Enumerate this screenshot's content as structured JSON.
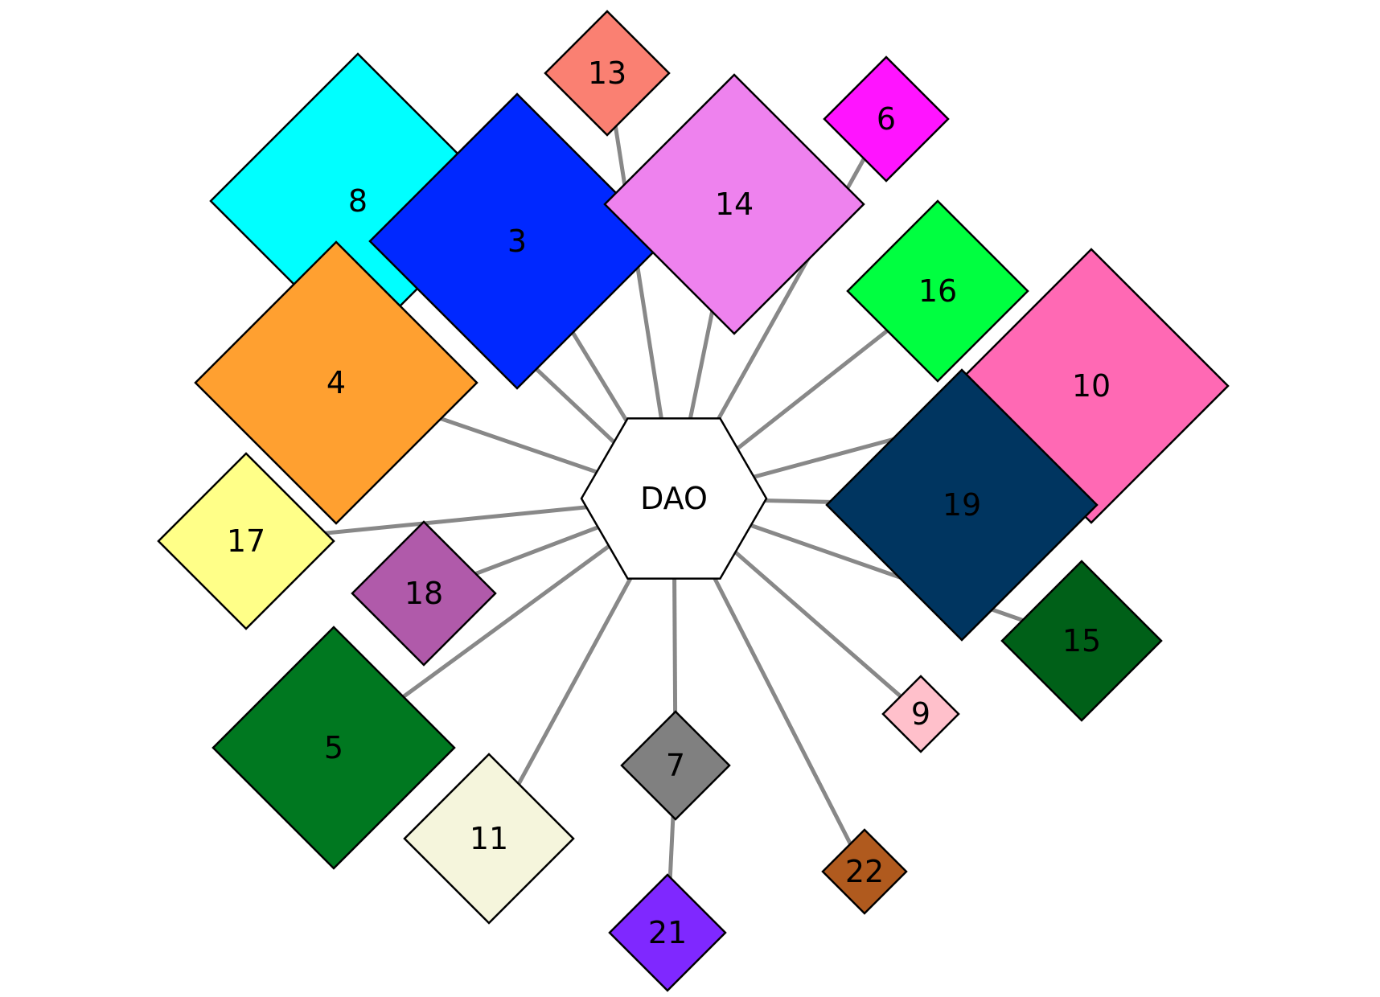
{
  "hub": {
    "label": "DAO",
    "color": "#ffffff"
  },
  "nodes": [
    {
      "id": "8",
      "label": "8",
      "color": "#00ffff"
    },
    {
      "id": "3",
      "label": "3",
      "color": "#0028ff"
    },
    {
      "id": "13",
      "label": "13",
      "color": "#fa8072"
    },
    {
      "id": "14",
      "label": "14",
      "color": "#ee82ee"
    },
    {
      "id": "6",
      "label": "6",
      "color": "#ff14ff"
    },
    {
      "id": "16",
      "label": "16",
      "color": "#00ff40"
    },
    {
      "id": "4",
      "label": "4",
      "color": "#ffa030"
    },
    {
      "id": "10",
      "label": "10",
      "color": "#ff69b4"
    },
    {
      "id": "19",
      "label": "19",
      "color": "#003560"
    },
    {
      "id": "17",
      "label": "17",
      "color": "#ffff88"
    },
    {
      "id": "18",
      "label": "18",
      "color": "#b05aaa"
    },
    {
      "id": "15",
      "label": "15",
      "color": "#006018"
    },
    {
      "id": "5",
      "label": "5",
      "color": "#007820"
    },
    {
      "id": "9",
      "label": "9",
      "color": "#ffc0cb"
    },
    {
      "id": "7",
      "label": "7",
      "color": "#808080"
    },
    {
      "id": "11",
      "label": "11",
      "color": "#f5f5dc"
    },
    {
      "id": "22",
      "label": "22",
      "color": "#b05a1e"
    },
    {
      "id": "21",
      "label": "21",
      "color": "#7f28ff"
    }
  ],
  "edges": [
    {
      "from": "DAO",
      "to": "13"
    },
    {
      "from": "DAO",
      "to": "14"
    },
    {
      "from": "DAO",
      "to": "6"
    },
    {
      "from": "DAO",
      "to": "3"
    },
    {
      "from": "DAO",
      "to": "8"
    },
    {
      "from": "DAO",
      "to": "4"
    },
    {
      "from": "DAO",
      "to": "17"
    },
    {
      "from": "DAO",
      "to": "18"
    },
    {
      "from": "DAO",
      "to": "5"
    },
    {
      "from": "DAO",
      "to": "11"
    },
    {
      "from": "DAO",
      "to": "7"
    },
    {
      "from": "7",
      "to": "21"
    },
    {
      "from": "DAO",
      "to": "22"
    },
    {
      "from": "DAO",
      "to": "9"
    },
    {
      "from": "DAO",
      "to": "15"
    },
    {
      "from": "DAO",
      "to": "19"
    },
    {
      "from": "DAO",
      "to": "10"
    },
    {
      "from": "DAO",
      "to": "16"
    }
  ]
}
